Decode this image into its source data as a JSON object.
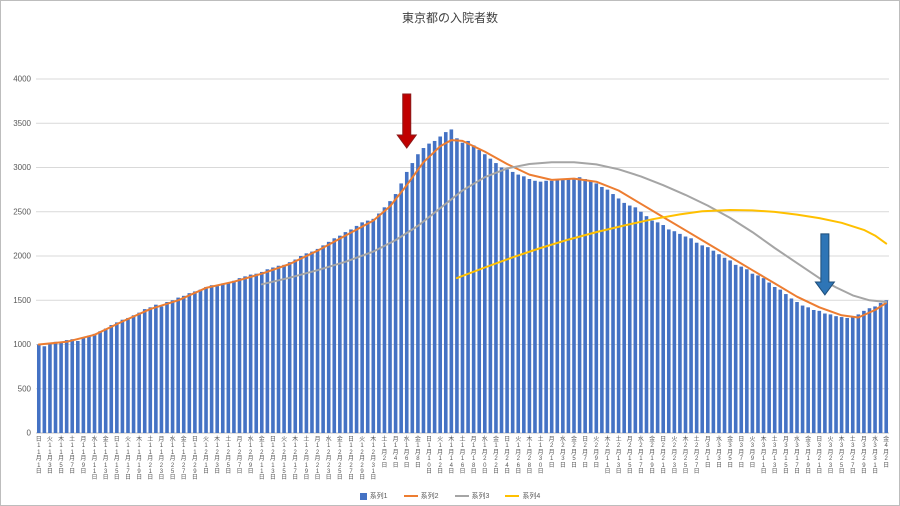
{
  "chart_data": {
    "type": "bar",
    "title": "東京都の入院者数",
    "ylabel": "",
    "xlabel": "",
    "ylim": [
      0,
      4000
    ],
    "ytick_interval": 500,
    "yticks": [
      0,
      500,
      1000,
      1500,
      2000,
      2500,
      3000,
      3500,
      4000
    ],
    "grid": true,
    "legend_position": "bottom",
    "x_range": "11月1日(日) 〜 4月2日(金)",
    "category_day_step": 2,
    "categories": [
      "日|11月|1日",
      "火|11月|3日",
      "木|11月|5日",
      "土|11月|7日",
      "月|11月|9日",
      "水|11月|11日",
      "金|11月|13日",
      "日|11月|15日",
      "火|11月|17日",
      "木|11月|19日",
      "土|11月|21日",
      "月|11月|23日",
      "水|11月|25日",
      "金|11月|27日",
      "日|11月|29日",
      "火|12月|1日",
      "木|12月|3日",
      "土|12月|5日",
      "月|12月|7日",
      "水|12月|9日",
      "金|12月|11日",
      "日|12月|13日",
      "火|12月|15日",
      "木|12月|17日",
      "土|12月|19日",
      "月|12月|21日",
      "水|12月|23日",
      "金|12月|25日",
      "日|12月|27日",
      "火|12月|29日",
      "木|12月|31日",
      "土|1月|2日",
      "月|1月|4日",
      "水|1月|6日",
      "金|1月|8日",
      "日|1月|10日",
      "火|1月|12日",
      "木|1月|14日",
      "土|1月|16日",
      "月|1月|18日",
      "水|1月|20日",
      "金|1月|22日",
      "日|1月|24日",
      "火|1月|26日",
      "木|1月|28日",
      "土|1月|30日",
      "月|2月|1日",
      "水|2月|3日",
      "金|2月|5日",
      "日|2月|7日",
      "火|2月|9日",
      "木|2月|11日",
      "土|2月|13日",
      "月|2月|15日",
      "水|2月|17日",
      "金|2月|19日",
      "日|2月|21日",
      "火|2月|23日",
      "木|2月|25日",
      "土|2月|27日",
      "月|3月|1日",
      "水|3月|3日",
      "金|3月|5日",
      "日|3月|7日",
      "火|3月|9日",
      "木|3月|11日",
      "土|3月|13日",
      "月|3月|15日",
      "水|3月|17日",
      "金|3月|19日",
      "日|3月|21日",
      "火|3月|23日",
      "木|3月|25日",
      "土|3月|27日",
      "月|3月|29日",
      "水|3月|31日",
      "金|4月|2日"
    ],
    "series": [
      {
        "name": "系列1",
        "type": "bar",
        "color": "#4472C4",
        "values": [
          1000,
          980,
          1010,
          1030,
          1020,
          1050,
          1060,
          1040,
          1080,
          1100,
          1120,
          1150,
          1180,
          1220,
          1250,
          1280,
          1300,
          1330,
          1360,
          1400,
          1420,
          1450,
          1430,
          1480,
          1500,
          1530,
          1550,
          1580,
          1600,
          1620,
          1650,
          1670,
          1660,
          1690,
          1700,
          1720,
          1750,
          1770,
          1790,
          1800,
          1820,
          1850,
          1870,
          1890,
          1900,
          1930,
          1960,
          2000,
          2030,
          2050,
          2080,
          2120,
          2160,
          2200,
          2230,
          2270,
          2300,
          2340,
          2380,
          2400,
          2420,
          2480,
          2550,
          2620,
          2700,
          2820,
          2950,
          3050,
          3150,
          3220,
          3270,
          3300,
          3350,
          3400,
          3430,
          3330,
          3280,
          3300,
          3250,
          3200,
          3150,
          3100,
          3050,
          3000,
          2980,
          2950,
          2920,
          2900,
          2870,
          2850,
          2840,
          2850,
          2850,
          2860,
          2870,
          2880,
          2880,
          2890,
          2870,
          2850,
          2820,
          2780,
          2750,
          2700,
          2650,
          2600,
          2570,
          2550,
          2500,
          2450,
          2400,
          2380,
          2350,
          2300,
          2280,
          2250,
          2220,
          2200,
          2150,
          2120,
          2100,
          2060,
          2020,
          1980,
          1950,
          1900,
          1880,
          1850,
          1800,
          1780,
          1750,
          1700,
          1650,
          1620,
          1570,
          1520,
          1480,
          1440,
          1420,
          1390,
          1380,
          1350,
          1340,
          1320,
          1310,
          1300,
          1320,
          1340,
          1380,
          1410,
          1430,
          1470,
          1500
        ]
      },
      {
        "name": "系列2",
        "type": "line",
        "color": "#ED7D31",
        "points": [
          [
            0,
            1000
          ],
          [
            5,
            1030
          ],
          [
            10,
            1110
          ],
          [
            15,
            1260
          ],
          [
            20,
            1400
          ],
          [
            25,
            1500
          ],
          [
            30,
            1640
          ],
          [
            35,
            1710
          ],
          [
            40,
            1800
          ],
          [
            45,
            1910
          ],
          [
            50,
            2060
          ],
          [
            55,
            2230
          ],
          [
            60,
            2400
          ],
          [
            63,
            2560
          ],
          [
            66,
            2800
          ],
          [
            69,
            3060
          ],
          [
            72,
            3240
          ],
          [
            74,
            3310
          ],
          [
            76,
            3300
          ],
          [
            80,
            3180
          ],
          [
            84,
            3040
          ],
          [
            88,
            2920
          ],
          [
            92,
            2860
          ],
          [
            96,
            2875
          ],
          [
            100,
            2840
          ],
          [
            104,
            2740
          ],
          [
            108,
            2590
          ],
          [
            112,
            2440
          ],
          [
            116,
            2290
          ],
          [
            120,
            2140
          ],
          [
            124,
            1990
          ],
          [
            128,
            1840
          ],
          [
            132,
            1690
          ],
          [
            136,
            1540
          ],
          [
            140,
            1420
          ],
          [
            144,
            1330
          ],
          [
            147,
            1305
          ],
          [
            150,
            1390
          ],
          [
            152,
            1470
          ]
        ]
      },
      {
        "name": "系列3",
        "type": "line",
        "color": "#A5A5A5",
        "points": [
          [
            40,
            1680
          ],
          [
            45,
            1755
          ],
          [
            50,
            1840
          ],
          [
            55,
            1935
          ],
          [
            60,
            2050
          ],
          [
            64,
            2180
          ],
          [
            68,
            2340
          ],
          [
            72,
            2540
          ],
          [
            76,
            2740
          ],
          [
            80,
            2890
          ],
          [
            84,
            2990
          ],
          [
            88,
            3040
          ],
          [
            92,
            3060
          ],
          [
            96,
            3060
          ],
          [
            100,
            3035
          ],
          [
            104,
            2980
          ],
          [
            108,
            2900
          ],
          [
            112,
            2800
          ],
          [
            116,
            2690
          ],
          [
            120,
            2570
          ],
          [
            124,
            2430
          ],
          [
            128,
            2270
          ],
          [
            132,
            2090
          ],
          [
            136,
            1920
          ],
          [
            140,
            1750
          ],
          [
            143,
            1645
          ],
          [
            146,
            1555
          ],
          [
            149,
            1500
          ],
          [
            152,
            1480
          ]
        ]
      },
      {
        "name": "系列4",
        "type": "line",
        "color": "#FFC000",
        "points": [
          [
            75,
            1750
          ],
          [
            80,
            1870
          ],
          [
            85,
            1985
          ],
          [
            90,
            2090
          ],
          [
            95,
            2185
          ],
          [
            100,
            2270
          ],
          [
            105,
            2345
          ],
          [
            110,
            2415
          ],
          [
            115,
            2470
          ],
          [
            119,
            2505
          ],
          [
            124,
            2520
          ],
          [
            128,
            2515
          ],
          [
            132,
            2498
          ],
          [
            136,
            2468
          ],
          [
            140,
            2428
          ],
          [
            144,
            2375
          ],
          [
            148,
            2295
          ],
          [
            150,
            2230
          ],
          [
            152,
            2140
          ]
        ]
      }
    ],
    "annotations": [
      {
        "name": "red-down-arrow",
        "shape": "down-arrow",
        "color": "#C00000",
        "stroke": "#8B1A1A",
        "day_index": 66,
        "value_from": 3830,
        "value_to": 3220
      },
      {
        "name": "blue-down-arrow",
        "shape": "down-arrow",
        "color": "#2E75B6",
        "stroke": "#1F4E79",
        "day_index": 141,
        "value_from": 2250,
        "value_to": 1560
      }
    ]
  }
}
